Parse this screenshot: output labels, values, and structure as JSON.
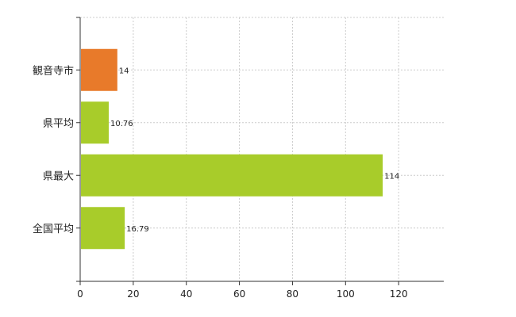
{
  "chart_data": {
    "type": "bar",
    "orientation": "horizontal",
    "categories": [
      "観音寺市",
      "県平均",
      "県最大",
      "全国平均"
    ],
    "values": [
      14,
      10.76,
      114,
      16.79
    ],
    "value_labels": [
      "14",
      "10.76",
      "114",
      "16.79"
    ],
    "colors": [
      "#E87A2A",
      "#A8CC2A",
      "#A8CC2A",
      "#A8CC2A"
    ],
    "x_ticks": [
      0,
      20,
      40,
      60,
      80,
      100,
      120
    ],
    "xlim": [
      0,
      137
    ],
    "grid": "vertical dashed",
    "title": "",
    "xlabel": "",
    "ylabel": ""
  }
}
